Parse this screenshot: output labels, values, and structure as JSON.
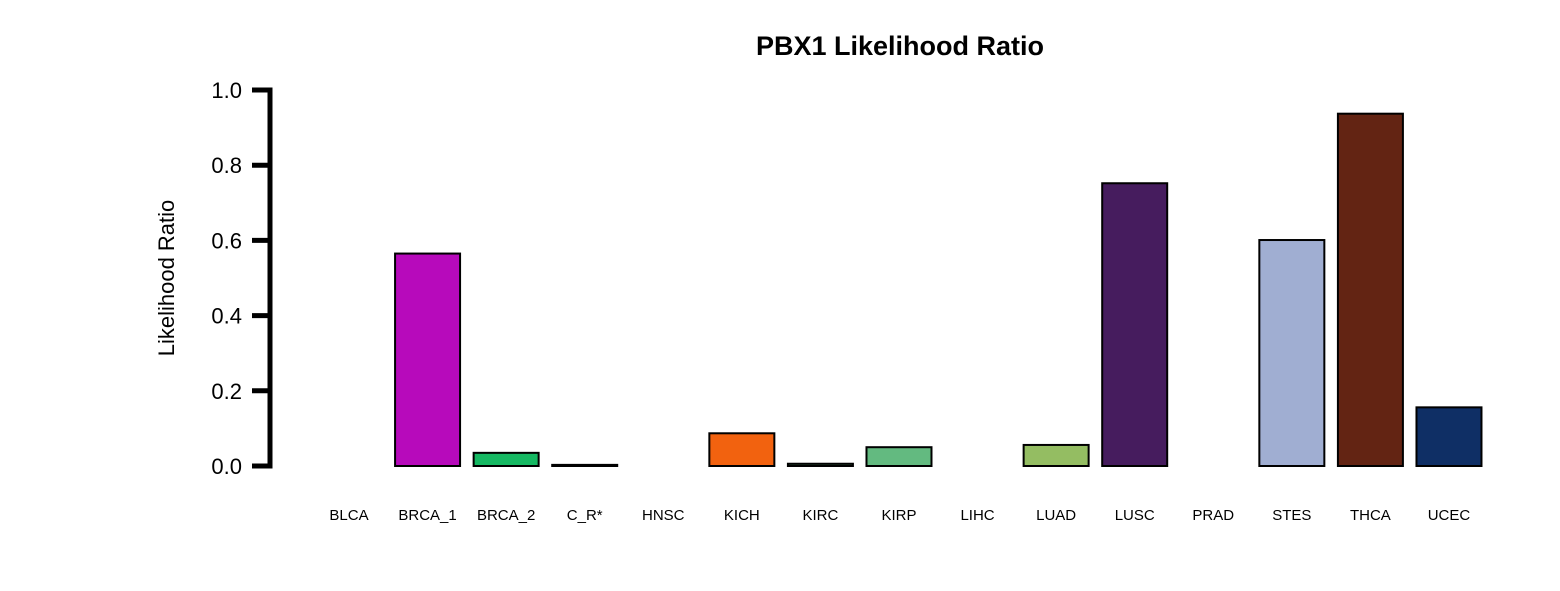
{
  "chart_data": {
    "type": "bar",
    "title": "PBX1 Likelihood Ratio",
    "xlabel": "",
    "ylabel": "Likelihood Ratio",
    "ylim": [
      0,
      1.0
    ],
    "yticks": [
      "0.0",
      "0.2",
      "0.4",
      "0.6",
      "0.8",
      "1.0"
    ],
    "grid": false,
    "legend": "none",
    "categories": [
      "BLCA",
      "BRCA_1",
      "BRCA_2",
      "C_R*",
      "HNSC",
      "KICH",
      "KIRC",
      "KIRP",
      "LIHC",
      "LUAD",
      "LUSC",
      "PRAD",
      "STES",
      "THCA",
      "UCEC"
    ],
    "values": [
      0.0,
      0.565,
      0.035,
      0.003,
      0.0,
      0.087,
      0.006,
      0.05,
      0.0,
      0.056,
      0.752,
      0.0,
      0.601,
      0.937,
      0.156
    ],
    "colors": [
      "#D9D9D9",
      "#B70ABB",
      "#15B862",
      "#6E6E6E",
      "#CFCFCF",
      "#F2620F",
      "#3C6E44",
      "#63BA80",
      "#FFFFFF",
      "#94BD62",
      "#461C5E",
      "#DDE6EE",
      "#A0AED2",
      "#632413",
      "#0F2F65"
    ],
    "border_color": "#000000"
  }
}
